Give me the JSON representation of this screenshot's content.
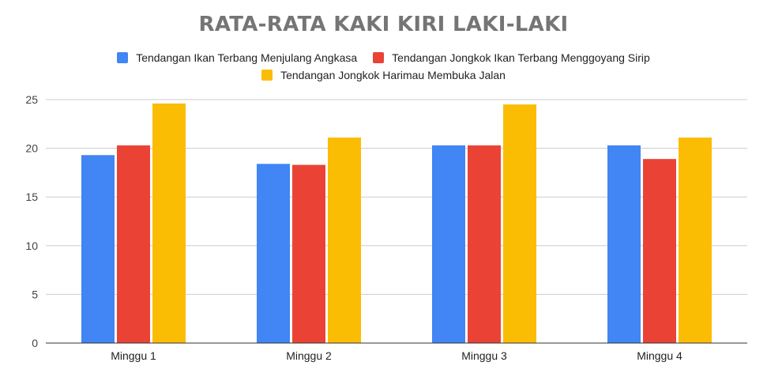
{
  "chart_data": {
    "type": "bar",
    "title": "RATA-RATA KAKI KIRI LAKI-LAKI",
    "categories": [
      "Minggu 1",
      "Minggu 2",
      "Minggu 3",
      "Minggu 4"
    ],
    "series": [
      {
        "name": "Tendangan Ikan Terbang Menjulang Angkasa",
        "color": "#4285f4",
        "values": [
          19.3,
          18.4,
          20.3,
          20.3
        ]
      },
      {
        "name": "Tendangan Jongkok Ikan Terbang Menggoyang Sirip",
        "color": "#ea4335",
        "values": [
          20.3,
          18.3,
          20.3,
          18.9
        ]
      },
      {
        "name": "Tendangan Jongkok Harimau Membuka Jalan",
        "color": "#fbbc04",
        "values": [
          24.6,
          21.1,
          24.5,
          21.1
        ]
      }
    ],
    "y_ticks": [
      "0",
      "5",
      "10",
      "15",
      "20",
      "25"
    ],
    "ylim": [
      0,
      25
    ],
    "grid": true,
    "legend_position": "top"
  }
}
